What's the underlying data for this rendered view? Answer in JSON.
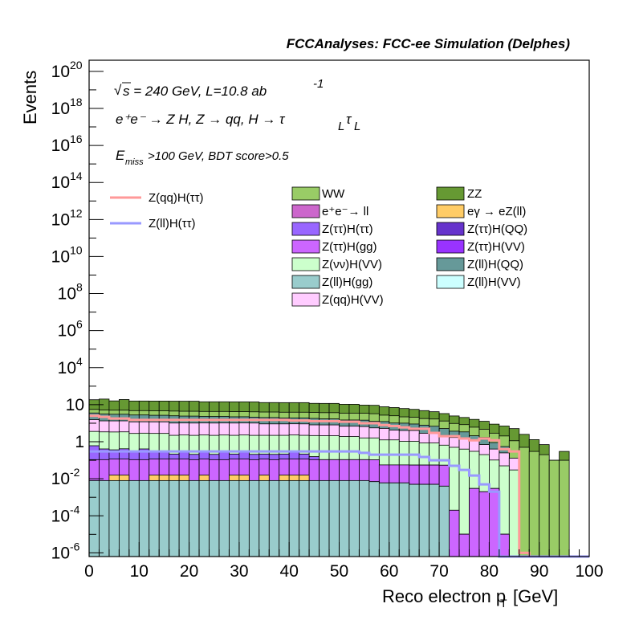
{
  "chart_data": {
    "type": "area",
    "title": "FCCAnalyses: FCC-ee Simulation (Delphes)",
    "annotations": {
      "sqrt_s": "s = 240 GeV, L=10.8 ab",
      "lumi_exp": "-1",
      "process": "e⁺e⁻ → Z H, Z → qq, H → τ_L τ_L",
      "process_main": "e⁺e⁻ → Z H, Z → qq, H → τ",
      "process_tail": "τ",
      "process_sub": "L",
      "selection_main": "E",
      "selection_sub": "miss",
      "selection_rest": ">100 GeV, BDT score>0.5"
    },
    "xlabel": "Reco electron p",
    "xlabel_sub": "T",
    "xlabel_unit": "[GeV]",
    "ylabel": "Events",
    "xlim": [
      0,
      100
    ],
    "ylim_log10": [
      -6.2,
      20.6
    ],
    "log_y": true,
    "grid": false,
    "legend_position": "top",
    "x_ticks": [
      "0",
      "10",
      "20",
      "30",
      "40",
      "50",
      "60",
      "70",
      "80",
      "90",
      "100"
    ],
    "y_tick_exponents": [
      "-6",
      "-4",
      "-2",
      "",
      "",
      "4",
      "6",
      "8",
      "10",
      "12",
      "14",
      "16",
      "18",
      "20"
    ],
    "y_tick_labels_plain": [
      "",
      "",
      "",
      "1",
      "10",
      "",
      "",
      "",
      "",
      "",
      "",
      "",
      "",
      ""
    ],
    "y_tick_labels_base": [
      "10",
      "10",
      "10",
      "",
      "",
      "10",
      "10",
      "10",
      "10",
      "10",
      "10",
      "10",
      "10",
      "10"
    ],
    "bin_width": 2,
    "stack": [
      {
        "name": "Z(ll)H(gg)",
        "color": "#99cccc",
        "values": [
          0.008,
          0.008,
          0.008,
          0.008,
          0.008,
          0.008,
          0.008,
          0.008,
          0.008,
          0.008,
          0.008,
          0.008,
          0.008,
          0.008,
          0.008,
          0.008,
          0.008,
          0.008,
          0.008,
          0.008,
          0.008,
          0.008,
          0.008,
          0.008,
          0.008,
          0.008,
          0.008,
          0.008,
          0.007,
          0.006,
          0.006,
          0.006,
          0.005,
          0.005,
          0.005,
          0.004,
          2e-07,
          2e-07,
          2e-07,
          2e-07,
          2e-07,
          2e-07,
          2e-07,
          2e-07,
          2e-07,
          2e-07,
          2e-07,
          2e-07,
          2e-07,
          2e-07
        ]
      },
      {
        "name": "eγ → eZ(ll)",
        "color": "#ffcc66",
        "values": [
          0,
          0,
          0.008,
          0.008,
          0,
          0,
          0.008,
          0.008,
          0.008,
          0.008,
          0,
          0.008,
          0,
          0,
          0.008,
          0.008,
          0,
          0.008,
          0,
          0.008,
          0.008,
          0.008,
          0,
          0,
          0,
          0,
          0,
          0,
          0,
          0,
          0,
          0,
          0,
          0,
          0,
          0,
          0,
          0,
          0,
          0,
          0,
          0,
          0,
          0,
          0,
          0,
          0,
          0,
          0,
          0
        ]
      },
      {
        "name": "Z(ττ)H(gg)",
        "color": "#cc66ff",
        "values": [
          0.1,
          0.1,
          0.1,
          0.1,
          0.1,
          0.1,
          0.1,
          0.1,
          0.1,
          0.1,
          0.1,
          0.1,
          0.1,
          0.1,
          0.1,
          0.1,
          0.1,
          0.1,
          0.1,
          0.1,
          0.1,
          0.1,
          0.1,
          0.1,
          0.1,
          0.1,
          0.1,
          0.1,
          0.1,
          0.05,
          0.05,
          0.05,
          0.05,
          0.05,
          0.05,
          0.05,
          0.0002,
          1e-05,
          0.003,
          0.002,
          0.003,
          1e-05,
          0,
          0,
          0,
          0,
          0,
          0,
          0,
          0
        ]
      },
      {
        "name": "Z(ττ)H(ττ)",
        "color": "#9966ff",
        "values": [
          0.5,
          0.3,
          0.25,
          0.3,
          0.2,
          0.3,
          0.2,
          0.2,
          0.1,
          0.2,
          0.1,
          0.2,
          0.1,
          0.2,
          0.1,
          0.2,
          0.1,
          0.1,
          0.1,
          0.1,
          0.2,
          0.1,
          0.05,
          0,
          0,
          0,
          0,
          0,
          0,
          0,
          0,
          0,
          0,
          0,
          0,
          0,
          0,
          0,
          0,
          0,
          0,
          0,
          0,
          0,
          0,
          0,
          0,
          0,
          0,
          0
        ]
      },
      {
        "name": "Z(νν)H(VV)",
        "color": "#ccffcc",
        "values": [
          3,
          3,
          3,
          3,
          2.5,
          2.5,
          2.5,
          2.5,
          2,
          2,
          2,
          2,
          2,
          2,
          2,
          2,
          2,
          2,
          2,
          2,
          2,
          2,
          2,
          2,
          2,
          1.8,
          1.8,
          1.5,
          1.5,
          1.2,
          1.2,
          1.0,
          1.0,
          0.8,
          0.8,
          0.6,
          0.5,
          0.4,
          0.3,
          0.2,
          0.1,
          0.05,
          0.03,
          0,
          0,
          0,
          0,
          0,
          0,
          0
        ]
      },
      {
        "name": "Z(qq)H(VV)",
        "color": "#ffccff",
        "values": [
          12,
          10,
          10,
          10,
          9,
          9,
          9,
          9,
          8,
          8,
          8,
          8,
          8,
          8,
          8,
          8,
          8,
          7,
          7,
          7,
          7,
          7,
          6,
          6,
          6,
          5,
          5,
          5,
          4,
          4,
          3,
          3,
          3,
          2,
          2,
          1.5,
          1.2,
          1,
          0.8,
          0.5,
          0.3,
          0.2,
          0.1,
          0,
          0,
          0,
          0,
          0,
          0,
          0
        ]
      },
      {
        "name": "Z(ll)H(QQ)",
        "color": "#669999",
        "values": [
          20,
          18,
          17,
          17,
          16,
          16,
          15,
          15,
          15,
          14,
          14,
          13,
          13,
          13,
          12,
          12,
          11,
          11,
          11,
          10,
          10,
          10,
          10,
          9,
          9,
          8,
          8,
          8,
          7,
          7,
          6,
          6,
          5,
          5,
          4,
          3,
          2,
          2,
          1,
          1,
          0.5,
          0.3,
          0,
          0,
          0,
          0,
          0,
          0,
          0,
          0
        ]
      },
      {
        "name": "WW",
        "color": "#99cc66",
        "values": [
          20,
          20,
          20,
          20,
          20,
          20,
          20,
          20,
          20,
          20,
          20,
          20,
          20,
          20,
          20,
          20,
          20,
          20,
          20,
          20,
          20,
          20,
          20,
          20,
          20,
          20,
          20,
          20,
          20,
          15,
          15,
          12,
          12,
          10,
          10,
          8,
          6,
          5,
          4,
          3,
          2,
          1.5,
          1.0,
          0.5,
          0.3,
          0.2,
          0.1,
          0.1,
          0,
          0
        ]
      },
      {
        "name": "ZZ",
        "color": "#669933",
        "values": [
          130,
          150,
          110,
          140,
          110,
          110,
          110,
          110,
          110,
          110,
          110,
          100,
          100,
          100,
          100,
          100,
          100,
          90,
          90,
          90,
          90,
          90,
          80,
          80,
          80,
          70,
          70,
          60,
          60,
          50,
          45,
          40,
          35,
          30,
          25,
          20,
          15,
          12,
          10,
          8,
          6,
          5,
          4,
          2,
          1,
          0.5,
          0,
          0.2,
          0,
          0
        ]
      }
    ],
    "signals": [
      {
        "name": "Z(qq)H(ττ)",
        "color": "#ff9999",
        "values": [
          25,
          22,
          18,
          18,
          15,
          15,
          15,
          15,
          15,
          15,
          15,
          15,
          15,
          15,
          15,
          15,
          15,
          15,
          15,
          15,
          14,
          14,
          13,
          13,
          13,
          12,
          12,
          10,
          10,
          8,
          7,
          6,
          5,
          5,
          3,
          2,
          2,
          1.5,
          1.2,
          1.5,
          1.2,
          0.4,
          0.3,
          1e-06,
          0,
          0,
          0,
          0,
          0,
          0
        ]
      },
      {
        "name": "Z(ll)H(ττ)",
        "color": "#9999ff",
        "values": [
          0.3,
          0.3,
          0.3,
          0.3,
          0.3,
          0.3,
          0.3,
          0.3,
          0.3,
          0.3,
          0.3,
          0.3,
          0.3,
          0.3,
          0.3,
          0.3,
          0.3,
          0.3,
          0.3,
          0.3,
          0.3,
          0.3,
          0.3,
          0.3,
          0.3,
          0.3,
          0.3,
          0.25,
          0.2,
          0.2,
          0.2,
          0.2,
          0.2,
          0.15,
          0.1,
          0.1,
          0.05,
          0.03,
          0.015,
          0.005,
          0.002,
          5e-07,
          0,
          0,
          0,
          0,
          0,
          0,
          0,
          0
        ]
      }
    ],
    "legend_extra": [
      {
        "name": "e⁺e⁻→ ll",
        "color": "#cc66cc"
      },
      {
        "name": "Z(ττ)H(QQ)",
        "color": "#6633cc"
      },
      {
        "name": "Z(ττ)H(VV)",
        "color": "#9933ff"
      },
      {
        "name": "Z(ll)H(VV)",
        "color": "#ccffff"
      }
    ],
    "legend_order_left": [
      "WW",
      "e⁺e⁻→ ll",
      "Z(ττ)H(ττ)",
      "Z(ττ)H(gg)",
      "Z(νν)H(VV)",
      "Z(ll)H(gg)",
      "Z(qq)H(VV)"
    ],
    "legend_order_right": [
      "ZZ",
      "eγ → eZ(ll)",
      "Z(ττ)H(QQ)",
      "Z(ττ)H(VV)",
      "Z(ll)H(QQ)",
      "Z(ll)H(VV)"
    ],
    "legend_left_colors": [
      "#99cc66",
      "#cc66cc",
      "#9966ff",
      "#cc66ff",
      "#ccffcc",
      "#99cccc",
      "#ffccff"
    ],
    "legend_right_colors": [
      "#669933",
      "#ffcc66",
      "#6633cc",
      "#9933ff",
      "#669999",
      "#ccffff"
    ]
  }
}
